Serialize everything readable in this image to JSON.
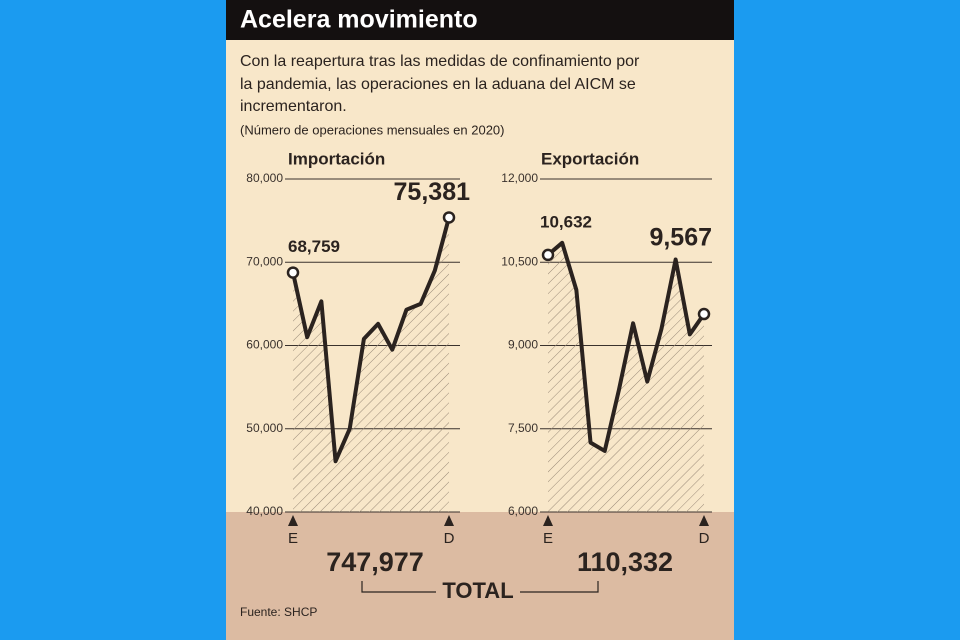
{
  "header": {
    "title": "Acelera movimiento",
    "description": [
      "Con la reapertura tras las medidas de confinamiento por",
      "la pandemia, las operaciones en la aduana del AICM se",
      "incrementaron."
    ],
    "unit_note": "(Número de operaciones mensuales en 2020)"
  },
  "chart_data": [
    {
      "type": "line",
      "title": "Importación",
      "categories": [
        "E",
        null,
        null,
        null,
        null,
        null,
        null,
        null,
        null,
        null,
        null,
        "D"
      ],
      "values": [
        68759,
        61000,
        65300,
        46100,
        50000,
        60800,
        62600,
        59500,
        64300,
        65000,
        69000,
        75381
      ],
      "value_labels": [
        "68,759",
        null,
        null,
        null,
        null,
        null,
        null,
        null,
        null,
        null,
        null,
        "75,381"
      ],
      "color": "#2b231f",
      "ylim": [
        40000,
        80000
      ],
      "yticks": [
        {
          "value": 40000,
          "label": "40,000"
        },
        {
          "value": 50000,
          "label": "50,000"
        },
        {
          "value": 60000,
          "label": "60,000"
        },
        {
          "value": 70000,
          "label": "70,000"
        },
        {
          "value": 80000,
          "label": "80,000"
        }
      ],
      "grid": true,
      "total": "747,977"
    },
    {
      "type": "line",
      "title": "Exportación",
      "categories": [
        "E",
        null,
        null,
        null,
        null,
        null,
        null,
        null,
        null,
        null,
        null,
        "D"
      ],
      "values": [
        10632,
        10850,
        10000,
        7250,
        7100,
        8200,
        9400,
        8350,
        9300,
        10550,
        9200,
        9567
      ],
      "value_labels": [
        "10,632",
        null,
        null,
        null,
        null,
        null,
        null,
        null,
        null,
        null,
        null,
        "9,567"
      ],
      "color": "#2b231f",
      "ylim": [
        6000,
        12000
      ],
      "yticks": [
        {
          "value": 6000,
          "label": "6,000"
        },
        {
          "value": 7500,
          "label": "7,500"
        },
        {
          "value": 9000,
          "label": "9,000"
        },
        {
          "value": 10500,
          "label": "10,500"
        },
        {
          "value": 12000,
          "label": "12,000"
        }
      ],
      "grid": true,
      "total": "110,332"
    }
  ],
  "footer": {
    "total_label": "TOTAL",
    "source": "Fuente: SHCP"
  }
}
